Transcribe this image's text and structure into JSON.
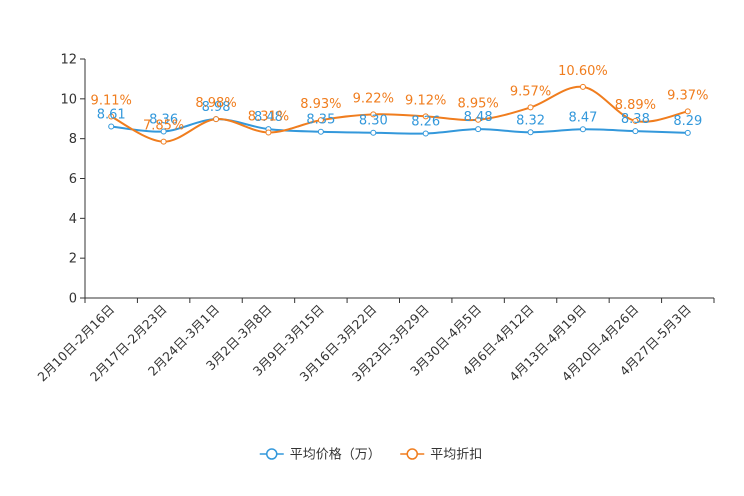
{
  "chart_data": {
    "type": "line",
    "title": "",
    "xlabel": "",
    "ylabel": "",
    "ylim": [
      0,
      12
    ],
    "yticks": [
      0,
      2,
      4,
      6,
      8,
      10,
      12
    ],
    "grid": false,
    "legend_position": "bottom-center",
    "categories": [
      "2月10日-2月16日",
      "2月17日-2月23日",
      "2月24日-3月1日",
      "3月2日-3月8日",
      "3月9日-3月15日",
      "3月16日-3月22日",
      "3月23日-3月29日",
      "3月30日-4月5日",
      "4月6日-4月12日",
      "4月13日-4月19日",
      "4月20日-4月26日",
      "4月27日-5月3日"
    ],
    "series": [
      {
        "name": "平均价格（万）",
        "color": "#3398db",
        "values": [
          8.61,
          8.36,
          8.98,
          8.48,
          8.35,
          8.3,
          8.26,
          8.48,
          8.32,
          8.47,
          8.38,
          8.29
        ],
        "labels": [
          "8.61",
          "8.36",
          "8.98",
          "8.48",
          "8.35",
          "8.30",
          "8.26",
          "8.48",
          "8.32",
          "8.47",
          "8.38",
          "8.29"
        ]
      },
      {
        "name": "平均折扣",
        "color": "#f07d1e",
        "values": [
          9.11,
          7.85,
          8.98,
          8.31,
          8.93,
          9.22,
          9.12,
          8.95,
          9.57,
          10.6,
          8.89,
          9.37
        ],
        "labels": [
          "9.11%",
          "7.85%",
          "8.98%",
          "8.31%",
          "8.93%",
          "9.22%",
          "9.12%",
          "8.95%",
          "9.57%",
          "10.60%",
          "8.89%",
          "9.37%"
        ]
      }
    ]
  }
}
